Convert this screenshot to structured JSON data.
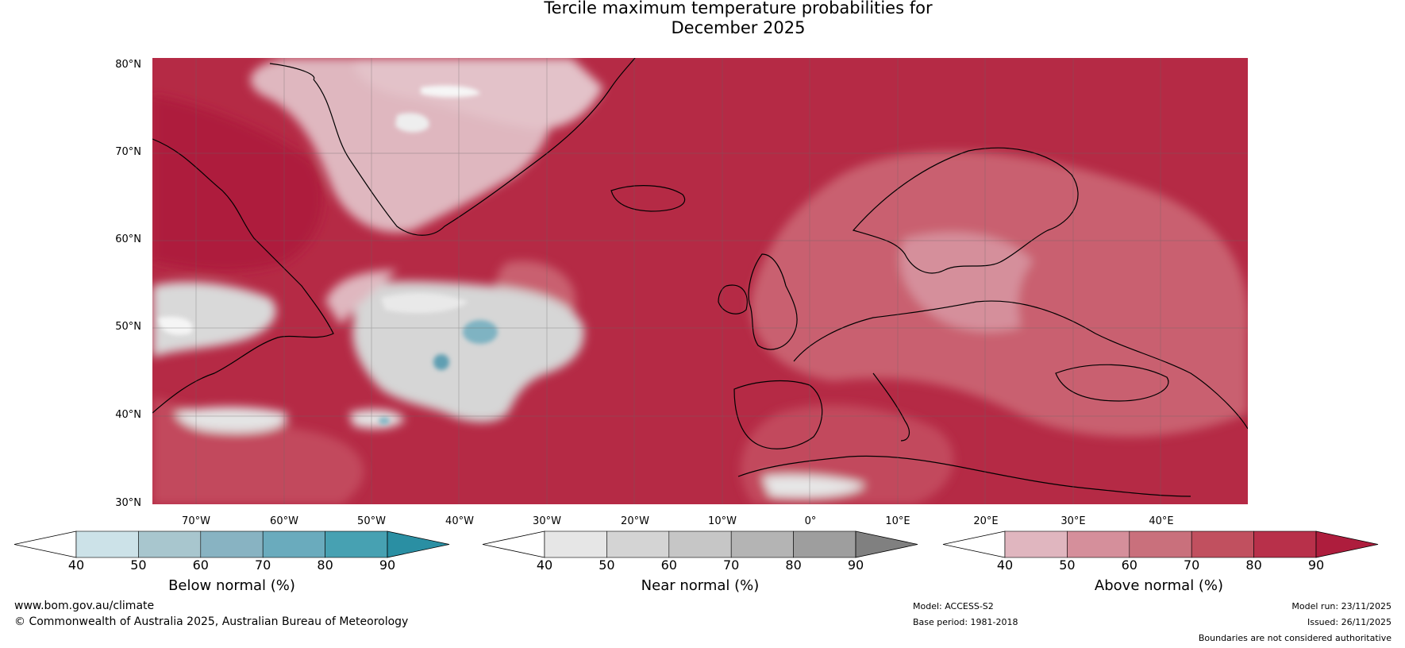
{
  "title": {
    "line1": "Tercile maximum temperature probabilities for",
    "line2": "December 2025"
  },
  "map": {
    "region": "North Atlantic and Europe",
    "lat_labels": [
      "80°N",
      "70°N",
      "60°N",
      "50°N",
      "40°N",
      "30°N"
    ],
    "lon_labels": [
      "70°W",
      "60°W",
      "50°W",
      "40°W",
      "30°W",
      "20°W",
      "10°W",
      "0°",
      "10°E",
      "20°E",
      "30°E",
      "40°E"
    ],
    "colors": {
      "above_dominant": "#b0203f",
      "above_mid": "#c43f55",
      "above_light": "#dfb7bf",
      "near_normal": "#d8d8d8",
      "below_light": "#6aa8b8"
    }
  },
  "legends": [
    {
      "name": "below",
      "title": "Below normal (%)",
      "ticks": [
        "40",
        "50",
        "60",
        "70",
        "80",
        "90"
      ],
      "colors": [
        "#ffffff",
        "#cce2e8",
        "#a8c6ce",
        "#88b3c2",
        "#6aabbd",
        "#47a1b2",
        "#2a8fa3"
      ]
    },
    {
      "name": "near",
      "title": "Near normal (%)",
      "ticks": [
        "40",
        "50",
        "60",
        "70",
        "80",
        "90"
      ],
      "colors": [
        "#ffffff",
        "#e6e6e6",
        "#d4d4d4",
        "#c6c6c6",
        "#b4b4b4",
        "#9e9e9e",
        "#808080"
      ]
    },
    {
      "name": "above",
      "title": "Above normal (%)",
      "ticks": [
        "40",
        "50",
        "60",
        "70",
        "80",
        "90"
      ],
      "colors": [
        "#ffffff",
        "#e0b6bf",
        "#d58f9b",
        "#c9707c",
        "#c1505f",
        "#b8304a",
        "#ae1d3d"
      ]
    }
  ],
  "footer": {
    "website": "www.bom.gov.au/climate",
    "copyright": "© Commonwealth of Australia 2025, Australian Bureau of Meteorology",
    "model": "Model: ACCESS-S2",
    "base_period": "Base period: 1981-2018",
    "model_run": "Model run: 23/11/2025",
    "issued": "Issued: 26/11/2025",
    "disclaimer": "Boundaries are not considered authoritative"
  }
}
